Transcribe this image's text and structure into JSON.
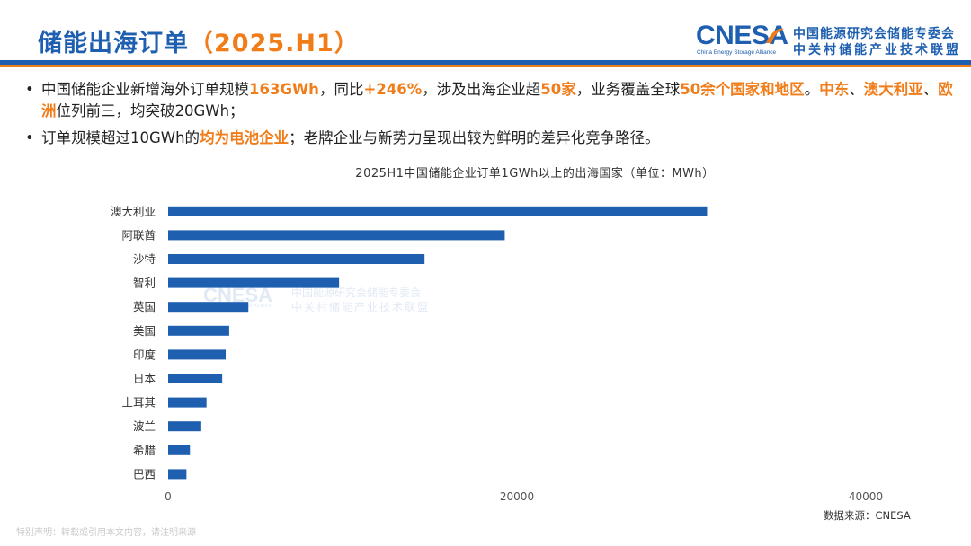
{
  "header": {
    "title": "储能出海订单",
    "title_period": "（2025.H1）",
    "logo_word": "CNESA",
    "logo_subtitle": "China Energy Storage Alliance",
    "logo_cn_line1": "中国能源研究会储能专委会",
    "logo_cn_line2": "中关村储能产业技术联盟"
  },
  "bullets": [
    {
      "segments": [
        {
          "text": "中国储能企业新增海外订单规模",
          "hl": false
        },
        {
          "text": "163GWh",
          "hl": true
        },
        {
          "text": "，同比",
          "hl": false
        },
        {
          "text": "+246%",
          "hl": true
        },
        {
          "text": "，涉及出海企业超",
          "hl": false
        },
        {
          "text": "50家",
          "hl": true
        },
        {
          "text": "，业务覆盖全球",
          "hl": false
        },
        {
          "text": "50余个国家和地区",
          "hl": true
        },
        {
          "text": "。",
          "hl": false
        },
        {
          "text": "中东",
          "hl": true
        },
        {
          "text": "、",
          "hl": false
        },
        {
          "text": "澳大利亚",
          "hl": true
        },
        {
          "text": "、",
          "hl": false
        },
        {
          "text": "欧洲",
          "hl": true
        },
        {
          "text": "位列前三，均突破20GWh；",
          "hl": false
        }
      ]
    },
    {
      "segments": [
        {
          "text": "订单规模超过10GWh的",
          "hl": false
        },
        {
          "text": "均为电池企业",
          "hl": true
        },
        {
          "text": "；老牌企业与新势力呈现出较为鲜明的差异化竞争路径。",
          "hl": false
        }
      ]
    }
  ],
  "bullet_symbol": "•",
  "colors": {
    "brand_blue": "#1f5fb0",
    "accent_orange": "#f07d1a",
    "bar": "#1f5fb0"
  },
  "chart_data": {
    "type": "bar",
    "orientation": "horizontal",
    "title": "2025H1中国储能企业订单1GWh以上的出海国家（单位：MWh）",
    "categories": [
      "澳大利亚",
      "阿联酋",
      "沙特",
      "智利",
      "英国",
      "美国",
      "印度",
      "日本",
      "土耳其",
      "波兰",
      "希腊",
      "巴西"
    ],
    "values": [
      30900,
      19300,
      14700,
      9800,
      4600,
      3500,
      3300,
      3100,
      2200,
      1900,
      1250,
      1050
    ],
    "xlim": [
      0,
      45000
    ],
    "xticks": [
      0,
      20000,
      40000
    ],
    "xlabel": "",
    "ylabel": "",
    "grid": false,
    "legend": "none"
  },
  "watermark": {
    "word": "CNESA",
    "subtitle": "China Energy Storage Alliance",
    "cn_line1": "中国能源研究会储能专委会",
    "cn_line2": "中关村储能产业技术联盟"
  },
  "source": "数据来源：CNESA",
  "disclaimer": "特别声明：转载或引用本文内容，请注明来源"
}
